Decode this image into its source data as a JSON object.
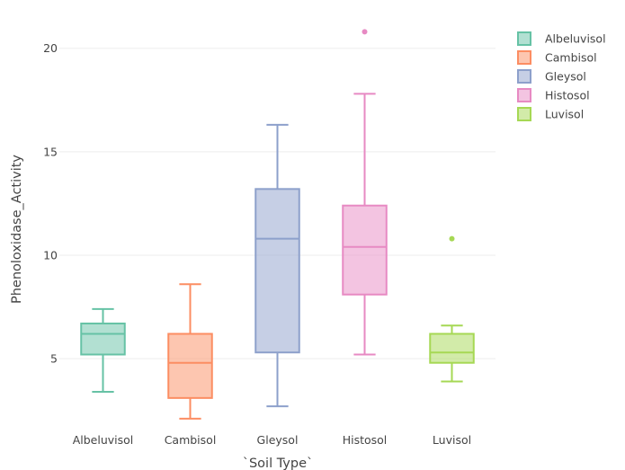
{
  "chart_data": {
    "type": "box",
    "xlabel": "`Soil Type`",
    "ylabel": "Phenoloxidase_Activity",
    "ylim": [
      1.4,
      21.9
    ],
    "yticks": [
      5,
      10,
      15,
      20
    ],
    "grid": true,
    "legend_position": "top-right",
    "categories": [
      "Albeluvisol",
      "Cambisol",
      "Gleysol",
      "Histosol",
      "Luvisol"
    ],
    "series": [
      {
        "name": "Albeluvisol",
        "color": "#66c2a5",
        "lower_whisker": 3.4,
        "q1": 5.2,
        "median": 6.2,
        "q3": 6.7,
        "upper_whisker": 7.4,
        "outliers": []
      },
      {
        "name": "Cambisol",
        "color": "#fc8d62",
        "lower_whisker": 2.1,
        "q1": 3.1,
        "median": 4.8,
        "q3": 6.2,
        "upper_whisker": 8.6,
        "outliers": []
      },
      {
        "name": "Gleysol",
        "color": "#8da0cb",
        "lower_whisker": 2.7,
        "q1": 5.3,
        "median": 10.8,
        "q3": 13.2,
        "upper_whisker": 16.3,
        "outliers": []
      },
      {
        "name": "Histosol",
        "color": "#e78ac3",
        "lower_whisker": 5.2,
        "q1": 8.1,
        "median": 10.4,
        "q3": 12.4,
        "upper_whisker": 17.8,
        "outliers": [
          20.8
        ]
      },
      {
        "name": "Luvisol",
        "color": "#a6d854",
        "lower_whisker": 3.9,
        "q1": 4.8,
        "median": 5.3,
        "q3": 6.2,
        "upper_whisker": 6.6,
        "outliers": [
          10.8
        ]
      }
    ]
  }
}
